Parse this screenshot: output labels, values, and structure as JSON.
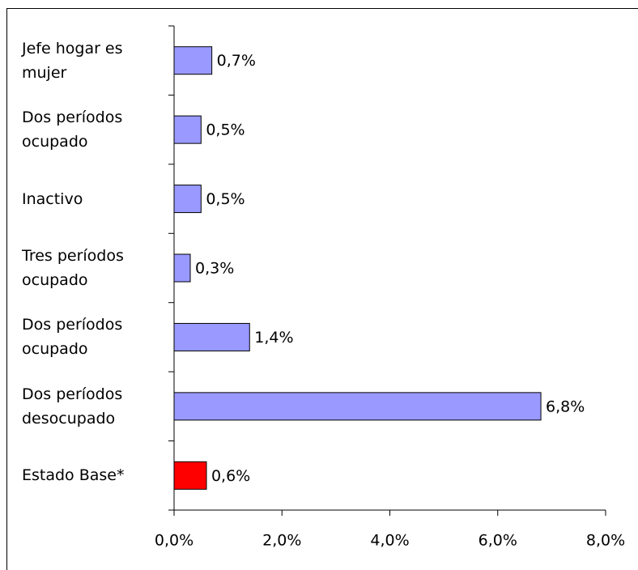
{
  "chart_data": {
    "type": "bar",
    "orientation": "horizontal",
    "categories": [
      "Jefe hogar es mujer",
      "Dos períodos ocupado",
      "Inactivo",
      "Tres períodos ocupado",
      "Dos períodos ocupado",
      "Dos períodos desocupado",
      "Estado Base*"
    ],
    "values": [
      0.7,
      0.5,
      0.5,
      0.3,
      1.4,
      6.8,
      0.6
    ],
    "value_labels": [
      "0,7%",
      "0,5%",
      "0,5%",
      "0,3%",
      "1,4%",
      "6,8%",
      "0,6%"
    ],
    "colors": [
      "#9999ff",
      "#9999ff",
      "#9999ff",
      "#9999ff",
      "#9999ff",
      "#9999ff",
      "#ff0000"
    ],
    "xlim": [
      0,
      8
    ],
    "xticks": [
      {
        "value": 0,
        "label": "0,0%"
      },
      {
        "value": 2,
        "label": "2,0%"
      },
      {
        "value": 4,
        "label": "4,0%"
      },
      {
        "value": 6,
        "label": "6,0%"
      },
      {
        "value": 8,
        "label": "8,0%"
      }
    ],
    "grid": false
  }
}
